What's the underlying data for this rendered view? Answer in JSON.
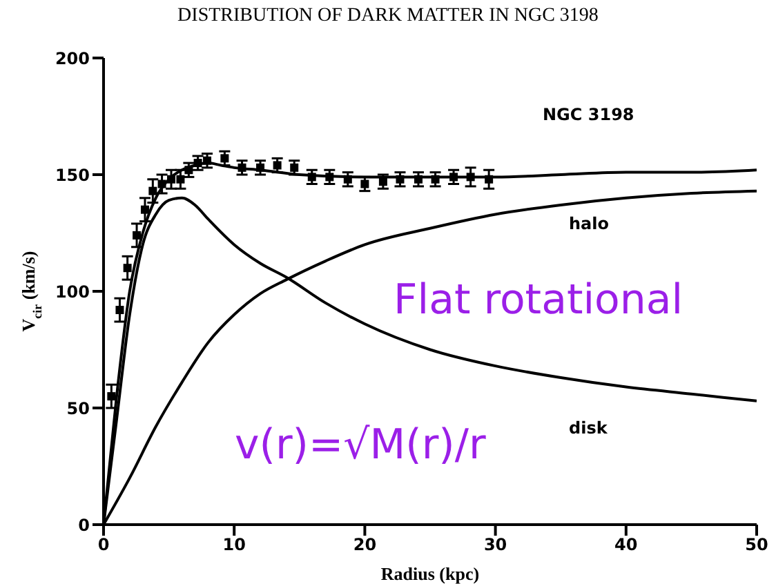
{
  "chart_data": {
    "type": "scatter",
    "title": "DISTRIBUTION OF DARK MATTER IN NGC 3198",
    "xlabel": "Radius   (kpc)",
    "ylabel": "V$_{cir}$ (km/s)",
    "xlim": [
      0,
      50
    ],
    "xticks": [
      0,
      10,
      20,
      30,
      40,
      50
    ],
    "ylim": [
      0,
      200
    ],
    "yticks": [
      0,
      50,
      100,
      150,
      200
    ],
    "grid": false,
    "legend": false,
    "series": [
      {
        "color": "#000000",
        "marker": "square",
        "x": [
          0.6,
          1.24,
          1.83,
          2.54,
          3.17,
          3.77,
          4.47,
          5.18,
          5.89,
          6.52,
          7.22,
          7.93,
          9.27,
          10.6,
          12.0,
          13.3,
          14.6,
          15.95,
          17.3,
          18.7,
          20.0,
          21.4,
          22.7,
          24.1,
          25.4,
          26.8,
          28.1,
          29.5
        ],
        "values": [
          55,
          92,
          110,
          124,
          135,
          143,
          146,
          148,
          148,
          152,
          155,
          156,
          157,
          153,
          153,
          154,
          153,
          149,
          149,
          148,
          146,
          147,
          148,
          148,
          148,
          149,
          149,
          148
        ],
        "errors": [
          5,
          5,
          5,
          5,
          5,
          5,
          4,
          4,
          4,
          3,
          3,
          3,
          3,
          3,
          3,
          3,
          3,
          3,
          3,
          3,
          3,
          3,
          3,
          3,
          3,
          3,
          4,
          4
        ]
      },
      {
        "type": "line",
        "color": "#000000",
        "line_style": "solid",
        "x": [
          0,
          1,
          2,
          3,
          4,
          5,
          6,
          7,
          8,
          9,
          10,
          12,
          15,
          20,
          25,
          30,
          35,
          40,
          45,
          50
        ],
        "values": [
          0,
          55,
          100,
          125,
          140,
          148,
          152,
          154,
          155,
          154,
          153,
          152,
          150,
          149,
          149,
          149,
          150,
          151,
          151,
          152
        ]
      },
      {
        "type": "line",
        "color": "#000000",
        "line_style": "solid",
        "x": [
          0,
          2,
          4,
          6,
          8,
          10,
          12,
          14,
          17,
          20,
          25,
          30,
          35,
          40,
          45,
          50
        ],
        "values": [
          0,
          20,
          42,
          61,
          78,
          90,
          99,
          105,
          113,
          120,
          127,
          133,
          137,
          140,
          142,
          143
        ]
      },
      {
        "type": "line",
        "color": "#000000",
        "line_style": "solid",
        "x": [
          0,
          1,
          2,
          3,
          4,
          5,
          6,
          7,
          8,
          10,
          12,
          14,
          17,
          20,
          25,
          30,
          35,
          40,
          45,
          50
        ],
        "values": [
          0,
          45,
          90,
          120,
          133,
          139,
          140,
          137,
          131,
          120,
          112,
          106,
          95,
          86,
          75,
          68,
          63,
          59,
          56,
          53
        ]
      }
    ],
    "annotations": [
      "NGC 3198",
      "halo",
      "disk",
      "Flat rotational",
      "v(r)=√M(r)/r"
    ]
  }
}
